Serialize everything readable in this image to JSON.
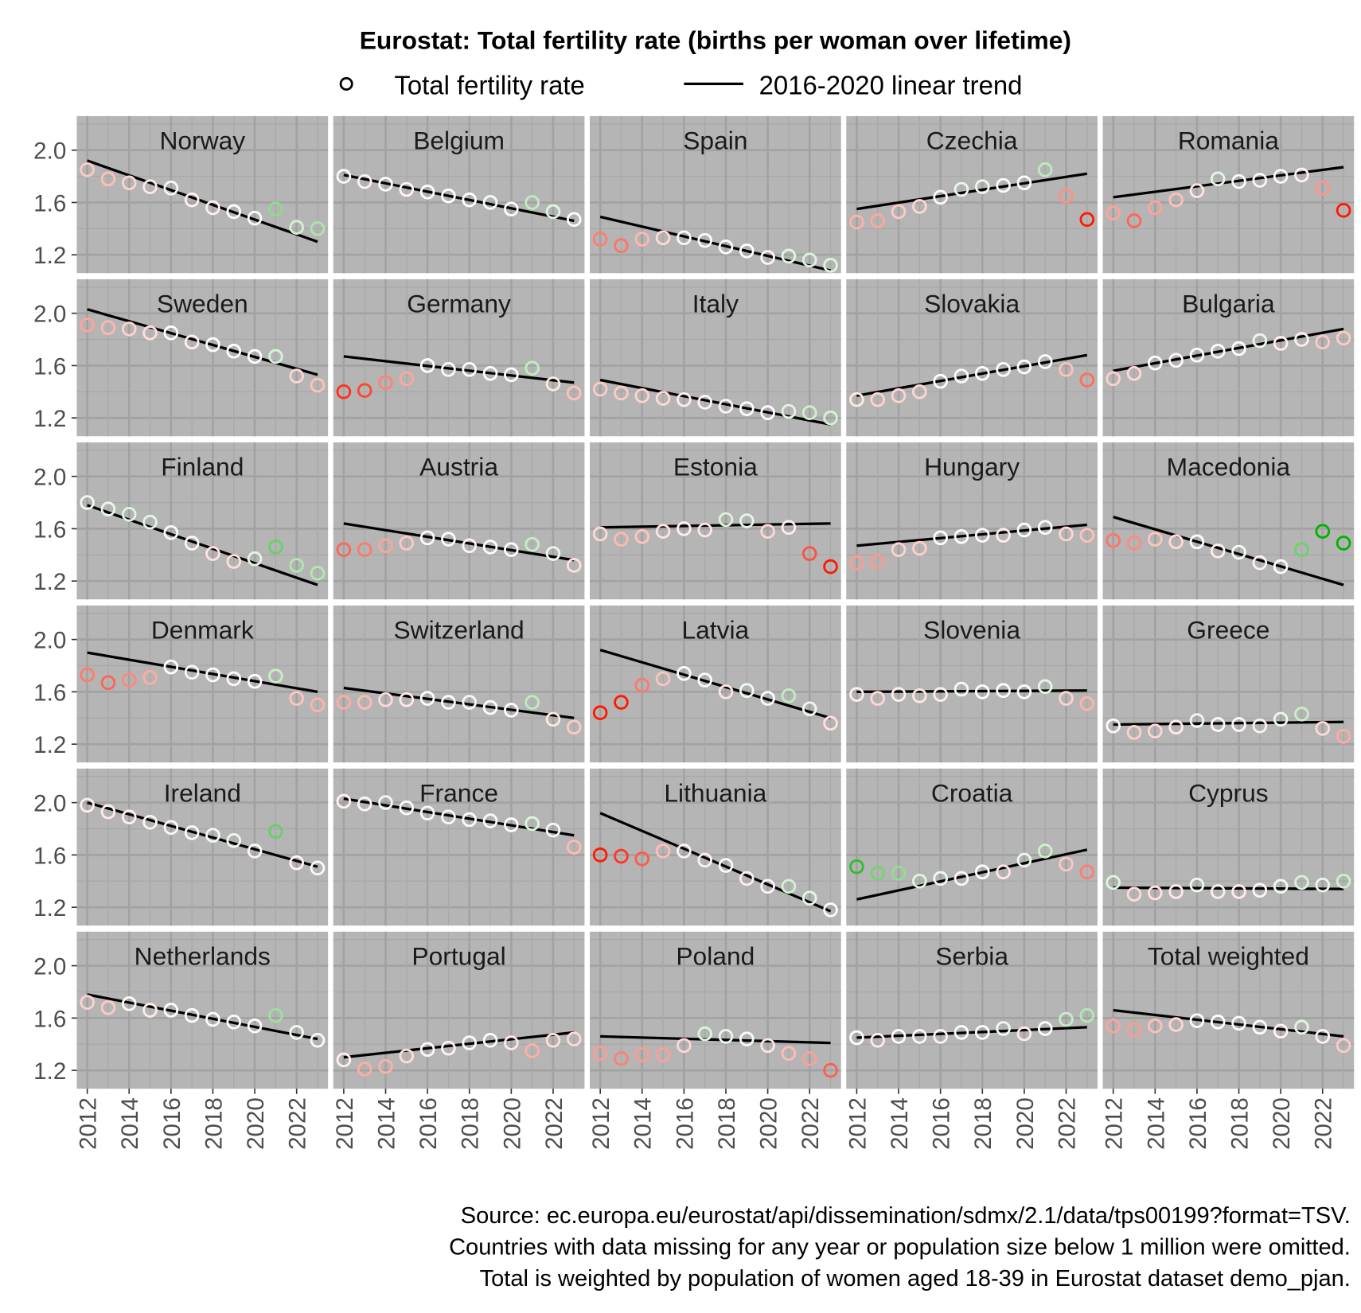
{
  "chart_data": {
    "type": "scatter",
    "title": "Eurostat: Total fertility rate (births per woman over lifetime)",
    "legend": {
      "placement": "top",
      "points_label": "Total fertility rate",
      "line_label": "2016-2020 linear trend"
    },
    "x": [
      2012,
      2013,
      2014,
      2015,
      2016,
      2017,
      2018,
      2019,
      2020,
      2021,
      2022,
      2023
    ],
    "x_ticks": [
      "2012",
      "2014",
      "2016",
      "2018",
      "2020",
      "2022"
    ],
    "y_ticks": [
      "1.2",
      "1.6",
      "2.0"
    ],
    "ylim": [
      1.06,
      2.26
    ],
    "colors": {
      "below_trend": "#ff1a00",
      "above_trend": "#00b400",
      "on_trend": "#ffffff",
      "panel_bg": "#b5b5b5"
    },
    "panels": [
      {
        "name": "Norway",
        "values": [
          1.85,
          1.78,
          1.75,
          1.72,
          1.71,
          1.62,
          1.56,
          1.53,
          1.48,
          1.55,
          1.41,
          1.4
        ],
        "trend": [
          1.92,
          1.3
        ]
      },
      {
        "name": "Belgium",
        "values": [
          1.8,
          1.76,
          1.74,
          1.7,
          1.68,
          1.65,
          1.62,
          1.6,
          1.55,
          1.6,
          1.53,
          1.47
        ],
        "trend": [
          1.81,
          1.46
        ]
      },
      {
        "name": "Spain",
        "values": [
          1.32,
          1.27,
          1.32,
          1.33,
          1.33,
          1.31,
          1.26,
          1.23,
          1.18,
          1.19,
          1.16,
          1.12
        ],
        "trend": [
          1.49,
          1.08
        ]
      },
      {
        "name": "Czechia",
        "values": [
          1.45,
          1.46,
          1.53,
          1.57,
          1.64,
          1.7,
          1.72,
          1.73,
          1.75,
          1.85,
          1.65,
          1.47
        ],
        "trend": [
          1.55,
          1.82
        ]
      },
      {
        "name": "Romania",
        "values": [
          1.52,
          1.46,
          1.56,
          1.62,
          1.69,
          1.78,
          1.76,
          1.77,
          1.8,
          1.81,
          1.71,
          1.54
        ],
        "trend": [
          1.64,
          1.87
        ]
      },
      {
        "name": "Sweden",
        "values": [
          1.91,
          1.89,
          1.88,
          1.85,
          1.85,
          1.78,
          1.76,
          1.71,
          1.67,
          1.67,
          1.52,
          1.45
        ],
        "trend": [
          2.03,
          1.53
        ]
      },
      {
        "name": "Germany",
        "values": [
          1.4,
          1.41,
          1.47,
          1.5,
          1.6,
          1.57,
          1.57,
          1.54,
          1.53,
          1.58,
          1.46,
          1.39
        ],
        "trend": [
          1.67,
          1.47
        ]
      },
      {
        "name": "Italy",
        "values": [
          1.42,
          1.39,
          1.37,
          1.35,
          1.34,
          1.32,
          1.29,
          1.27,
          1.24,
          1.25,
          1.24,
          1.2
        ],
        "trend": [
          1.49,
          1.15
        ]
      },
      {
        "name": "Slovakia",
        "values": [
          1.34,
          1.34,
          1.37,
          1.4,
          1.48,
          1.52,
          1.54,
          1.57,
          1.59,
          1.63,
          1.57,
          1.49
        ],
        "trend": [
          1.37,
          1.68
        ]
      },
      {
        "name": "Bulgaria",
        "values": [
          1.5,
          1.54,
          1.62,
          1.64,
          1.68,
          1.71,
          1.73,
          1.79,
          1.77,
          1.8,
          1.78,
          1.81
        ],
        "trend": [
          1.56,
          1.88
        ]
      },
      {
        "name": "Finland",
        "values": [
          1.8,
          1.75,
          1.71,
          1.65,
          1.57,
          1.49,
          1.41,
          1.35,
          1.37,
          1.46,
          1.32,
          1.26
        ],
        "trend": [
          1.78,
          1.17
        ]
      },
      {
        "name": "Austria",
        "values": [
          1.44,
          1.44,
          1.47,
          1.49,
          1.53,
          1.52,
          1.47,
          1.46,
          1.44,
          1.48,
          1.41,
          1.32
        ],
        "trend": [
          1.64,
          1.36
        ]
      },
      {
        "name": "Estonia",
        "values": [
          1.56,
          1.52,
          1.54,
          1.58,
          1.6,
          1.59,
          1.67,
          1.66,
          1.58,
          1.61,
          1.41,
          1.31
        ],
        "trend": [
          1.61,
          1.64
        ]
      },
      {
        "name": "Hungary",
        "values": [
          1.34,
          1.35,
          1.44,
          1.45,
          1.53,
          1.54,
          1.55,
          1.55,
          1.59,
          1.61,
          1.56,
          1.55
        ],
        "trend": [
          1.47,
          1.63
        ]
      },
      {
        "name": "Macedonia",
        "values": [
          1.51,
          1.49,
          1.52,
          1.5,
          1.5,
          1.43,
          1.42,
          1.34,
          1.31,
          1.44,
          1.58,
          1.49
        ],
        "trend": [
          1.69,
          1.17
        ]
      },
      {
        "name": "Denmark",
        "values": [
          1.73,
          1.67,
          1.69,
          1.71,
          1.79,
          1.75,
          1.73,
          1.7,
          1.68,
          1.72,
          1.55,
          1.5
        ],
        "trend": [
          1.9,
          1.6
        ]
      },
      {
        "name": "Switzerland",
        "values": [
          1.52,
          1.52,
          1.54,
          1.54,
          1.55,
          1.52,
          1.52,
          1.48,
          1.46,
          1.52,
          1.39,
          1.33
        ],
        "trend": [
          1.63,
          1.4
        ]
      },
      {
        "name": "Latvia",
        "values": [
          1.44,
          1.52,
          1.65,
          1.7,
          1.74,
          1.69,
          1.6,
          1.61,
          1.55,
          1.57,
          1.47,
          1.36
        ],
        "trend": [
          1.92,
          1.4
        ]
      },
      {
        "name": "Slovenia",
        "values": [
          1.58,
          1.55,
          1.58,
          1.57,
          1.58,
          1.62,
          1.6,
          1.61,
          1.6,
          1.64,
          1.55,
          1.51
        ],
        "trend": [
          1.6,
          1.61
        ]
      },
      {
        "name": "Greece",
        "values": [
          1.34,
          1.29,
          1.3,
          1.33,
          1.38,
          1.35,
          1.35,
          1.34,
          1.39,
          1.43,
          1.32,
          1.26
        ],
        "trend": [
          1.35,
          1.37
        ]
      },
      {
        "name": "Ireland",
        "values": [
          1.98,
          1.93,
          1.89,
          1.85,
          1.81,
          1.77,
          1.75,
          1.71,
          1.63,
          1.78,
          1.54,
          1.5
        ],
        "trend": [
          2.0,
          1.51
        ]
      },
      {
        "name": "France",
        "values": [
          2.01,
          1.99,
          2.0,
          1.96,
          1.92,
          1.89,
          1.87,
          1.86,
          1.83,
          1.84,
          1.79,
          1.66
        ],
        "trend": [
          2.03,
          1.75
        ]
      },
      {
        "name": "Lithuania",
        "values": [
          1.6,
          1.59,
          1.57,
          1.63,
          1.63,
          1.56,
          1.52,
          1.42,
          1.36,
          1.36,
          1.27,
          1.18
        ],
        "trend": [
          1.92,
          1.17
        ]
      },
      {
        "name": "Croatia",
        "values": [
          1.51,
          1.46,
          1.46,
          1.4,
          1.42,
          1.42,
          1.47,
          1.47,
          1.56,
          1.63,
          1.53,
          1.47
        ],
        "trend": [
          1.26,
          1.64
        ]
      },
      {
        "name": "Cyprus",
        "values": [
          1.39,
          1.3,
          1.31,
          1.32,
          1.37,
          1.32,
          1.32,
          1.33,
          1.36,
          1.39,
          1.37,
          1.4
        ],
        "trend": [
          1.35,
          1.34
        ]
      },
      {
        "name": "Netherlands",
        "values": [
          1.72,
          1.68,
          1.71,
          1.66,
          1.66,
          1.62,
          1.59,
          1.57,
          1.54,
          1.62,
          1.49,
          1.43
        ],
        "trend": [
          1.78,
          1.44
        ]
      },
      {
        "name": "Portugal",
        "values": [
          1.28,
          1.21,
          1.23,
          1.31,
          1.36,
          1.37,
          1.41,
          1.43,
          1.41,
          1.35,
          1.43,
          1.44
        ],
        "trend": [
          1.3,
          1.49
        ]
      },
      {
        "name": "Poland",
        "values": [
          1.33,
          1.29,
          1.32,
          1.32,
          1.39,
          1.48,
          1.46,
          1.44,
          1.39,
          1.33,
          1.29,
          1.2
        ],
        "trend": [
          1.46,
          1.41
        ]
      },
      {
        "name": "Serbia",
        "values": [
          1.45,
          1.43,
          1.46,
          1.46,
          1.46,
          1.49,
          1.49,
          1.52,
          1.48,
          1.52,
          1.59,
          1.62
        ],
        "trend": [
          1.45,
          1.53
        ]
      },
      {
        "name": "Total weighted",
        "values": [
          1.54,
          1.51,
          1.54,
          1.55,
          1.58,
          1.57,
          1.56,
          1.53,
          1.5,
          1.53,
          1.46,
          1.39
        ],
        "trend": [
          1.66,
          1.46
        ]
      }
    ],
    "caption": [
      "Source: ec.europa.eu/eurostat/api/dissemination/sdmx/2.1/data/tps00199?format=TSV.",
      "Countries with data missing for any year or population size below 1 million were omitted.",
      "Total is weighted by population of women aged 18-39 in Eurostat dataset demo_pjan."
    ]
  }
}
